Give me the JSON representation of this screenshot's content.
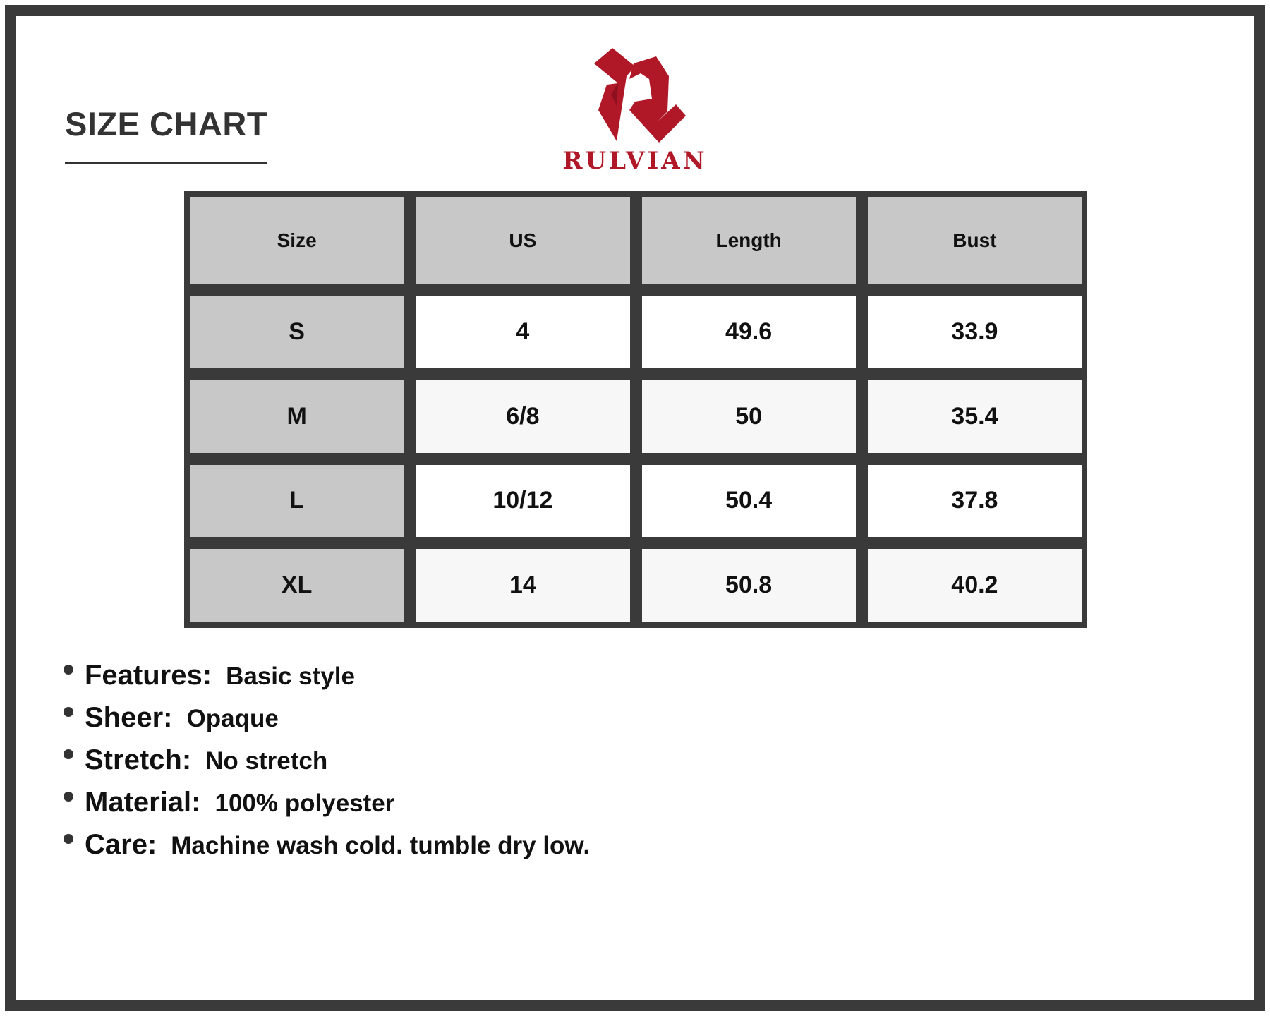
{
  "title": "SIZE CHART",
  "brand": {
    "name": "RULVIAN",
    "color": "#b01828",
    "icon": "rulvian-r-logo"
  },
  "table": {
    "headers": [
      "Size",
      "US",
      "Length",
      "Bust"
    ],
    "rows": [
      [
        "S",
        "4",
        "49.6",
        "33.9"
      ],
      [
        "M",
        "6/8",
        "50",
        "35.4"
      ],
      [
        "L",
        "10/12",
        "50.4",
        "37.8"
      ],
      [
        "XL",
        "14",
        "50.8",
        "40.2"
      ]
    ]
  },
  "specs": [
    {
      "label": "Features:",
      "value": "Basic style"
    },
    {
      "label": "Sheer:",
      "value": "Opaque"
    },
    {
      "label": "Stretch:",
      "value": "No stretch"
    },
    {
      "label": "Material:",
      "value": "100% polyester"
    },
    {
      "label": "Care:",
      "value": "Machine wash cold. tumble dry low."
    }
  ]
}
